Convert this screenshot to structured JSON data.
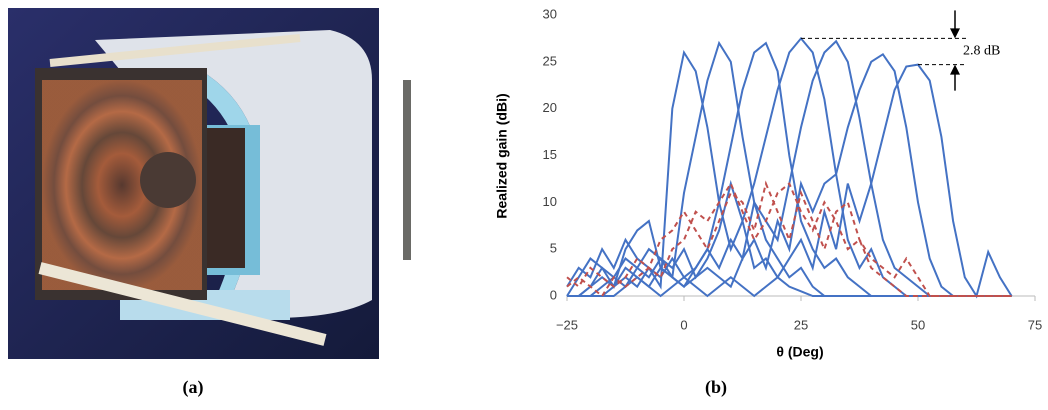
{
  "chart_data": {
    "type": "line",
    "xlabel": "θ (Deg)",
    "ylabel": "Realized gain (dBi)",
    "x": [
      -25,
      -22.5,
      -20,
      -17.5,
      -15,
      -12.5,
      -10,
      -7.5,
      -5,
      -2.5,
      0,
      2.5,
      5,
      7.5,
      10,
      12.5,
      15,
      17.5,
      20,
      22.5,
      25,
      27.5,
      30,
      32.5,
      35,
      37.5,
      40,
      42.5,
      45,
      47.5,
      50,
      52.5,
      55,
      57.5,
      60,
      62.5,
      65,
      67.5,
      70
    ],
    "xlim": [
      -25,
      75
    ],
    "ylim": [
      0,
      30
    ],
    "xticks": [
      {
        "value": -25,
        "label": "−25"
      },
      0,
      25,
      50,
      75
    ],
    "yticks": [
      0,
      5,
      10,
      15,
      20,
      25,
      30
    ],
    "grid": false,
    "annotation": "2.8 dB",
    "series": [
      {
        "color": "#4472c4",
        "dash": false,
        "values": [
          1,
          3,
          2,
          5,
          3,
          6,
          4,
          3,
          1,
          20,
          26,
          24,
          18,
          10,
          5,
          8,
          3,
          4,
          2,
          1,
          0.5,
          0,
          0,
          0,
          0,
          0,
          0,
          0,
          0,
          0,
          0,
          0,
          0,
          0,
          0,
          0,
          0,
          0,
          0
        ]
      },
      {
        "color": "#4472c4",
        "dash": false,
        "values": [
          0,
          2,
          4,
          3,
          1,
          5,
          7,
          8,
          3,
          2,
          11,
          17,
          23,
          27,
          25,
          17,
          10,
          6,
          4,
          2,
          3,
          1,
          0,
          0,
          0,
          0,
          0,
          0,
          0,
          0,
          0,
          0,
          0,
          0,
          0,
          0,
          0,
          0,
          0
        ]
      },
      {
        "color": "#4472c4",
        "dash": false,
        "values": [
          0,
          0,
          1,
          3,
          2,
          4,
          3,
          5,
          4,
          2,
          1,
          3,
          5,
          10,
          16,
          22,
          26,
          27,
          24,
          15,
          8,
          5,
          3,
          4,
          2,
          1,
          0,
          0,
          0,
          0,
          0,
          0,
          0,
          0,
          0,
          0,
          0,
          0,
          0
        ]
      },
      {
        "color": "#4472c4",
        "dash": false,
        "values": [
          0,
          0,
          0,
          1,
          2,
          1,
          3,
          2,
          4,
          3,
          5,
          2,
          4,
          7,
          12,
          8,
          12,
          17,
          22,
          26,
          27.5,
          26,
          21,
          13,
          6,
          3,
          5,
          2,
          1,
          0,
          0,
          0,
          0,
          0,
          0,
          0,
          0,
          0,
          0
        ]
      },
      {
        "color": "#4472c4",
        "dash": false,
        "values": [
          0,
          0,
          0,
          0,
          1,
          2,
          1,
          3,
          2,
          4,
          2,
          3,
          5,
          3,
          6,
          4,
          10,
          8,
          6,
          12,
          18,
          23,
          26,
          27.2,
          25,
          19,
          12,
          6,
          3,
          2,
          1,
          0,
          0,
          0,
          0,
          0,
          0,
          0,
          0
        ]
      },
      {
        "color": "#4472c4",
        "dash": false,
        "values": [
          0,
          0,
          1,
          2,
          1,
          3,
          2,
          1,
          3,
          2,
          1,
          2,
          3,
          2,
          1,
          4,
          6,
          3,
          8,
          5,
          12,
          9,
          12,
          13,
          18,
          22,
          25,
          25.8,
          24,
          18,
          10,
          4,
          1,
          0,
          0,
          0,
          0,
          0,
          0
        ]
      },
      {
        "color": "#4472c4",
        "dash": false,
        "values": [
          0,
          0,
          0,
          0,
          0,
          1,
          2,
          1,
          0,
          1,
          2,
          1,
          0,
          1,
          2,
          1,
          0,
          1,
          2,
          4,
          6,
          3,
          9,
          5,
          12,
          8,
          12,
          17,
          22,
          24.5,
          24.7,
          23,
          17,
          8,
          2,
          0,
          4.7,
          2,
          0
        ]
      },
      {
        "color": "#c0504d",
        "dash": true,
        "values": [
          2,
          1,
          3,
          2,
          1,
          2,
          4,
          3,
          2,
          5,
          6,
          9,
          8,
          10,
          12,
          9,
          6,
          8,
          11,
          12,
          9,
          7,
          10,
          8,
          5,
          6,
          3,
          2,
          1,
          0,
          0,
          0,
          0,
          0,
          0,
          0,
          0,
          0,
          0
        ]
      },
      {
        "color": "#c0504d",
        "dash": true,
        "values": [
          1,
          2,
          1,
          0,
          2,
          1,
          2,
          3,
          6,
          7,
          9,
          7,
          5,
          8,
          11,
          10,
          7,
          12,
          9,
          6,
          11,
          8,
          5,
          9,
          10,
          6,
          4,
          3,
          2,
          4,
          2,
          0,
          0,
          0,
          0,
          0,
          0,
          0,
          0
        ]
      }
    ]
  },
  "figure": {
    "caption_a": "(a)",
    "caption_b": "(b)"
  }
}
